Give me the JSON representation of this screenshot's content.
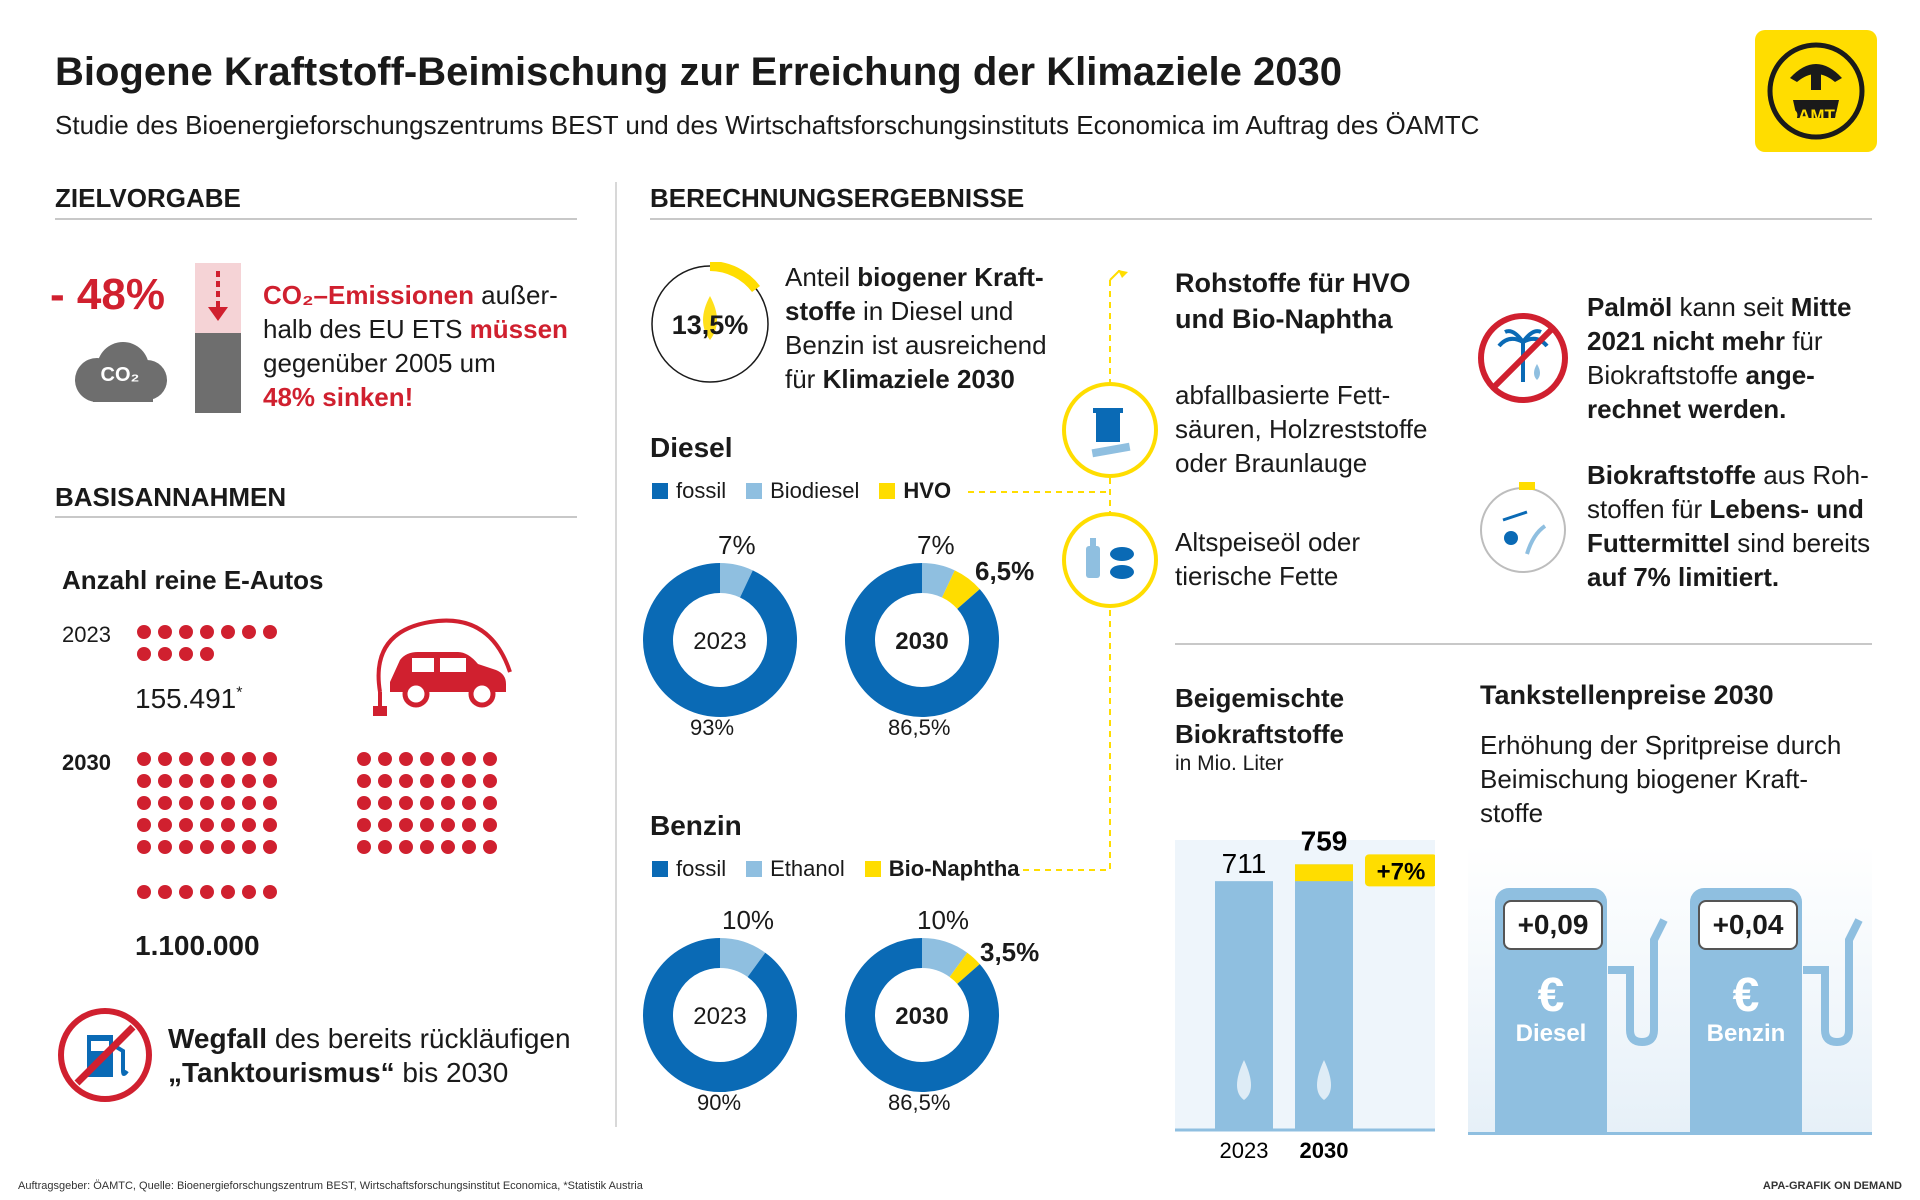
{
  "header": {
    "title": "Biogene Kraftstoff-Beimischung zur Erreichung der Klimaziele 2030",
    "subtitle": "Studie des Bioenergieforschungszentrums BEST und des Wirtschaftsforschungsinstituts Economica im Auftrag des ÖAMTC",
    "logo_text": "ÖAMTC"
  },
  "zielvorgabe": {
    "heading": "ZIELVORGABE",
    "percent": "- 48%",
    "co2_cloud": "CO₂",
    "text_a": "CO₂–Emissionen",
    "text_b": " außer-",
    "text_c": "halb des EU ETS ",
    "text_d": "müssen",
    "text_e": "gegenüber 2005 um",
    "text_f": "48% sinken!"
  },
  "basis": {
    "heading": "BASISANNAHMEN",
    "ev_heading": "Anzahl reine E-Autos",
    "year_2023": "2023",
    "value_2023": "155.491",
    "value_2023_note": "*",
    "year_2030": "2030",
    "value_2030": "1.100.000",
    "tank_bold": "Wegfall",
    "tank_text1": " des bereits rückläufigen",
    "tank_bold2": "„Tanktourismus“",
    "tank_text2": " bis 2030"
  },
  "results": {
    "heading": "BERECHNUNGSERGEBNISSE",
    "share_value": "13,5%",
    "share_text1": "Anteil ",
    "share_bold1": "biogener Kraft-",
    "share_bold2": "stoffe",
    "share_text2": " in Diesel und",
    "share_text3": "Benzin ist ausreichend",
    "share_text4": "für ",
    "share_bold3": "Klimaziele 2030"
  },
  "chart_data": [
    {
      "type": "pie",
      "group": "Diesel",
      "title": "2023",
      "legend": [
        "fossil",
        "Biodiesel",
        "HVO"
      ],
      "values": [
        93,
        7,
        0
      ],
      "labels": [
        "93%",
        "7%",
        ""
      ]
    },
    {
      "type": "pie",
      "group": "Diesel",
      "title": "2030",
      "legend": [
        "fossil",
        "Biodiesel",
        "HVO"
      ],
      "values": [
        86.5,
        7,
        6.5
      ],
      "labels": [
        "86,5%",
        "7%",
        "6,5%"
      ]
    },
    {
      "type": "pie",
      "group": "Benzin",
      "title": "2023",
      "legend": [
        "fossil",
        "Ethanol",
        "Bio-Naphtha"
      ],
      "values": [
        90,
        10,
        0
      ],
      "labels": [
        "90%",
        "10%",
        ""
      ]
    },
    {
      "type": "pie",
      "group": "Benzin",
      "title": "2030",
      "legend": [
        "fossil",
        "Ethanol",
        "Bio-Naphtha"
      ],
      "values": [
        86.5,
        10,
        3.5
      ],
      "labels": [
        "86,5%",
        "10%",
        "3,5%"
      ]
    },
    {
      "type": "bar",
      "title": "Beigemischte Biokraftstoffe",
      "ylabel": "in Mio. Liter",
      "categories": [
        "2023",
        "2030"
      ],
      "values": [
        711,
        759
      ],
      "annotation": "+7%"
    }
  ],
  "donuts": {
    "diesel_heading": "Diesel",
    "benzin_heading": "Benzin",
    "diesel_legend": [
      "fossil",
      "Biodiesel",
      "HVO"
    ],
    "benzin_legend": [
      "fossil",
      "Ethanol",
      "Bio-Naphtha"
    ],
    "diesel_2023": {
      "year": "2023",
      "top": "7%",
      "bottom": "93%"
    },
    "diesel_2030": {
      "year": "2030",
      "top": "7%",
      "side": "6,5%",
      "bottom": "86,5%"
    },
    "benzin_2023": {
      "year": "2023",
      "top": "10%",
      "bottom": "90%"
    },
    "benzin_2030": {
      "year": "2030",
      "top": "10%",
      "side": "3,5%",
      "bottom": "86,5%"
    }
  },
  "rohstoffe": {
    "heading1": "Rohstoffe für HVO",
    "heading2": "und Bio-Naphtha",
    "item1_l1": "abfallbasierte Fett-",
    "item1_l2": "säuren, Holzreststoffe",
    "item1_l3": "oder Braunlauge",
    "item2_l1": "Altspeiseöl oder",
    "item2_l2": "tierische Fette"
  },
  "palm": {
    "b1": "Palmöl",
    "t1": " kann seit ",
    "b2": "Mitte",
    "b3": "2021 nicht mehr",
    "t2": " für",
    "t3": "Biokraftstoffe ",
    "b4": "ange-",
    "b5": "rechnet werden."
  },
  "food": {
    "b1": "Biokraftstoffe",
    "t1": " aus Roh-",
    "t2": "stoffen für ",
    "b2": "Lebens- und",
    "b3": "Futtermittel",
    "t3": " sind bereits",
    "b4": "auf 7% limitiert."
  },
  "bars": {
    "heading1": "Beigemischte",
    "heading2": "Biokraftstoffe",
    "unit": "in Mio. Liter",
    "v2023": "711",
    "v2030": "759",
    "delta": "+7%",
    "y2023": "2023",
    "y2030": "2030"
  },
  "prices": {
    "heading": "Tankstellenpreise 2030",
    "text1": "Erhöhung der Spritpreise durch",
    "text2": "Beimischung biogener Kraft-",
    "text3": "stoffe",
    "diesel_delta": "+0,09",
    "diesel_label": "Diesel",
    "benzin_delta": "+0,04",
    "benzin_label": "Benzin",
    "currency": "€"
  },
  "footer": {
    "left": "Auftragsgeber: ÖAMTC, Quelle: Bioenergieforschungszentrum BEST, Wirtschaftsforschungsinstitut Economica, *Statistik Austria",
    "right": "APA-GRAFIK ON DEMAND"
  },
  "colors": {
    "fossil": "#0a6ab5",
    "bio": "#8fbfe0",
    "hvo": "#ffdd00",
    "red": "#d0202f",
    "grey": "#6e6e6e"
  }
}
